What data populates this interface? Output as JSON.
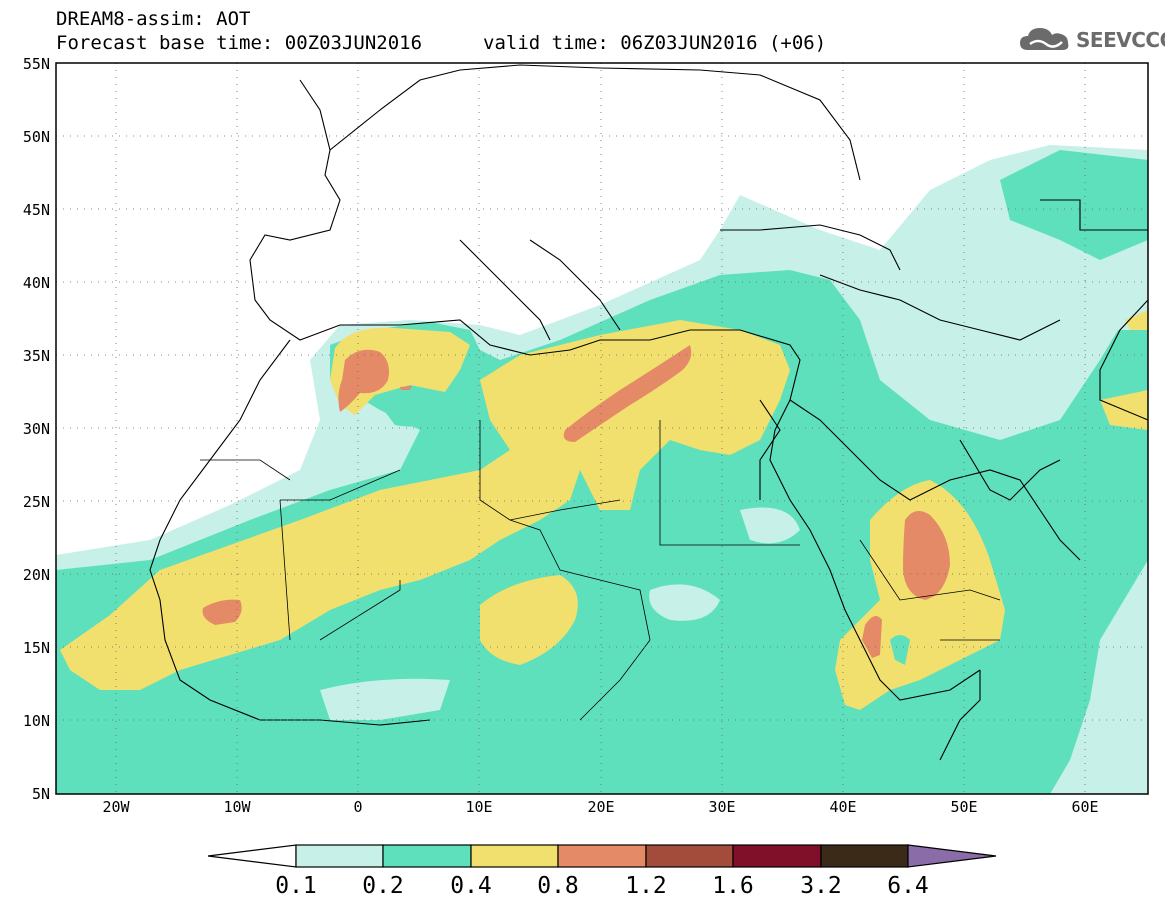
{
  "header": {
    "title": "DREAM8-assim: AOT",
    "base_time": "Forecast base time: 00Z03JUN2016",
    "valid_time": "valid time: 06Z03JUN2016 (+06)",
    "logo_text": "SEEVCCC"
  },
  "map": {
    "variable": "AOT",
    "lat_range": [
      5,
      55
    ],
    "lon_range": [
      -25,
      65
    ],
    "lat_ticks": [
      "55N",
      "50N",
      "45N",
      "40N",
      "35N",
      "30N",
      "25N",
      "20N",
      "15N",
      "10N",
      "5N"
    ],
    "lon_ticks": [
      "20W",
      "10W",
      "0",
      "10E",
      "20E",
      "30E",
      "40E",
      "50E",
      "60E"
    ],
    "colors": {
      "level_0_1": "#c6f0e8",
      "level_0_2": "#5ee0bc",
      "level_0_4": "#f2e06e",
      "level_0_8": "#e48a66",
      "level_1_2": "#a44c3c",
      "level_1_6": "#80102a",
      "level_3_2": "#3c2a18",
      "level_6_4": "#8a6ca8"
    }
  },
  "colorbar": {
    "labels": [
      "0.1",
      "0.2",
      "0.4",
      "0.8",
      "1.2",
      "1.6",
      "3.2",
      "6.4"
    ],
    "colors": [
      "#c6f0e8",
      "#5ee0bc",
      "#f2e06e",
      "#e48a66",
      "#a44c3c",
      "#80102a",
      "#3c2a18"
    ],
    "over_color": "#8a6ca8",
    "under_color": "#ffffff"
  }
}
